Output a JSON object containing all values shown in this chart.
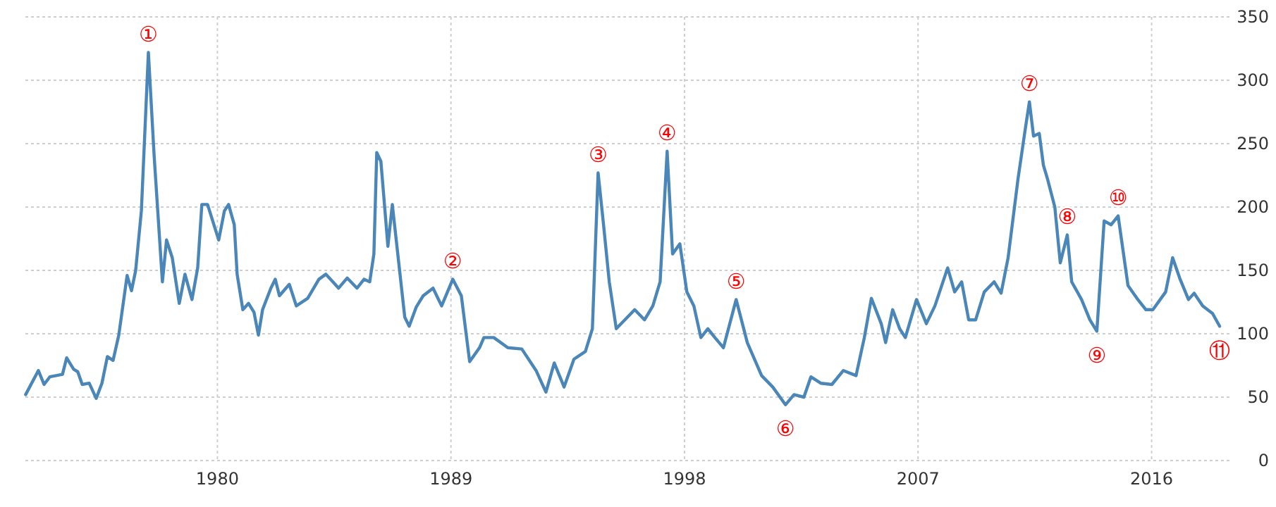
{
  "chart_data": {
    "type": "line",
    "xlim": [
      1972.6,
      2019.0
    ],
    "xticks": [
      1980,
      1989,
      1998,
      2007,
      2016
    ],
    "ylim": [
      0,
      350
    ],
    "yticks": [
      0,
      50,
      100,
      150,
      200,
      250,
      300,
      350
    ],
    "grid": true,
    "marker": "none",
    "line_style": "solid",
    "series": [
      {
        "color": "#4a86b8",
        "x": [
          1972.61,
          1973.1,
          1973.32,
          1973.54,
          1974.03,
          1974.19,
          1974.46,
          1974.62,
          1974.79,
          1975.06,
          1975.33,
          1975.55,
          1975.76,
          1975.98,
          1976.2,
          1976.52,
          1976.69,
          1976.85,
          1977.07,
          1977.34,
          1977.56,
          1977.88,
          1978.04,
          1978.26,
          1978.53,
          1978.75,
          1979.02,
          1979.24,
          1979.4,
          1979.62,
          1980.05,
          1980.27,
          1980.43,
          1980.65,
          1980.76,
          1980.98,
          1981.2,
          1981.41,
          1981.58,
          1981.74,
          1982.06,
          1982.23,
          1982.39,
          1982.77,
          1983.04,
          1983.48,
          1983.91,
          1984.18,
          1984.45,
          1984.67,
          1985.0,
          1985.38,
          1985.65,
          1985.87,
          1986.03,
          1986.14,
          1986.3,
          1986.57,
          1986.74,
          1987.01,
          1987.22,
          1987.39,
          1987.66,
          1987.93,
          1988.31,
          1988.64,
          1989.07,
          1989.4,
          1989.72,
          1990.1,
          1990.27,
          1990.65,
          1991.19,
          1991.73,
          1992.28,
          1992.66,
          1992.98,
          1993.36,
          1993.74,
          1994.18,
          1994.45,
          1994.67,
          1994.88,
          1995.1,
          1995.37,
          1995.7,
          1996.08,
          1996.46,
          1996.78,
          1997.06,
          1997.33,
          1997.54,
          1997.82,
          1998.09,
          1998.36,
          1998.63,
          1998.9,
          1999.17,
          1999.5,
          1999.99,
          2000.42,
          2000.97,
          2001.4,
          2001.89,
          2002.22,
          2002.6,
          2002.87,
          2003.25,
          2003.68,
          2004.12,
          2004.61,
          2004.93,
          2005.2,
          2005.58,
          2005.75,
          2006.02,
          2006.29,
          2006.51,
          2006.94,
          2007.32,
          2007.65,
          2008.14,
          2008.41,
          2008.68,
          2008.95,
          2009.22,
          2009.55,
          2009.93,
          2010.2,
          2010.47,
          2010.85,
          2011.12,
          2011.29,
          2011.45,
          2011.67,
          2011.83,
          2011.99,
          2012.27,
          2012.48,
          2012.75,
          2012.92,
          2013.3,
          2013.62,
          2013.89,
          2014.17,
          2014.44,
          2014.71,
          2015.09,
          2015.47,
          2015.78,
          2016.05,
          2016.54,
          2016.81,
          2017.08,
          2017.42,
          2017.64,
          2017.97,
          2018.35,
          2018.62
        ],
        "values": [
          52,
          71,
          60,
          66,
          68,
          81,
          72,
          70,
          60,
          61,
          49,
          61,
          82,
          79,
          99,
          146,
          134,
          150,
          197,
          322,
          241,
          141,
          174,
          160,
          124,
          147,
          127,
          152,
          202,
          202,
          174,
          197,
          202,
          186,
          147,
          119,
          124,
          117,
          99,
          119,
          136,
          143,
          130,
          139,
          122,
          128,
          143,
          147,
          141,
          136,
          144,
          136,
          143,
          141,
          163,
          243,
          236,
          169,
          202,
          152,
          113,
          106,
          121,
          130,
          136,
          122,
          143,
          130,
          78,
          89,
          97,
          97,
          89,
          88,
          71,
          54,
          77,
          58,
          80,
          86,
          104,
          227,
          186,
          141,
          104,
          111,
          119,
          111,
          122,
          141,
          244,
          163,
          171,
          133,
          122,
          97,
          104,
          97,
          89,
          127,
          93,
          67,
          58,
          44,
          52,
          50,
          66,
          61,
          60,
          71,
          67,
          97,
          128,
          108,
          93,
          119,
          104,
          97,
          127,
          108,
          122,
          152,
          133,
          141,
          111,
          111,
          133,
          141,
          132,
          160,
          222,
          260,
          283,
          256,
          258,
          233,
          222,
          200,
          156,
          178,
          141,
          127,
          111,
          102,
          189,
          186,
          193,
          138,
          127,
          119,
          119,
          133,
          160,
          144,
          127,
          132,
          122,
          116,
          106
        ]
      }
    ],
    "annotations": [
      {
        "text": "①",
        "x": 1977.34,
        "y": 322
      },
      {
        "text": "②",
        "x": 1989.07,
        "y": 143
      },
      {
        "text": "③",
        "x": 1994.67,
        "y": 227
      },
      {
        "text": "④",
        "x": 1997.33,
        "y": 244
      },
      {
        "text": "⑤",
        "x": 1999.99,
        "y": 127
      },
      {
        "text": "⑥",
        "x": 2001.89,
        "y": 44
      },
      {
        "text": "⑦",
        "x": 2011.29,
        "y": 283
      },
      {
        "text": "⑧",
        "x": 2012.75,
        "y": 178
      },
      {
        "text": "⑨",
        "x": 2013.89,
        "y": 102
      },
      {
        "text": "⑩",
        "x": 2014.71,
        "y": 193
      },
      {
        "text": "⑪",
        "x": 2018.62,
        "y": 106
      }
    ]
  }
}
